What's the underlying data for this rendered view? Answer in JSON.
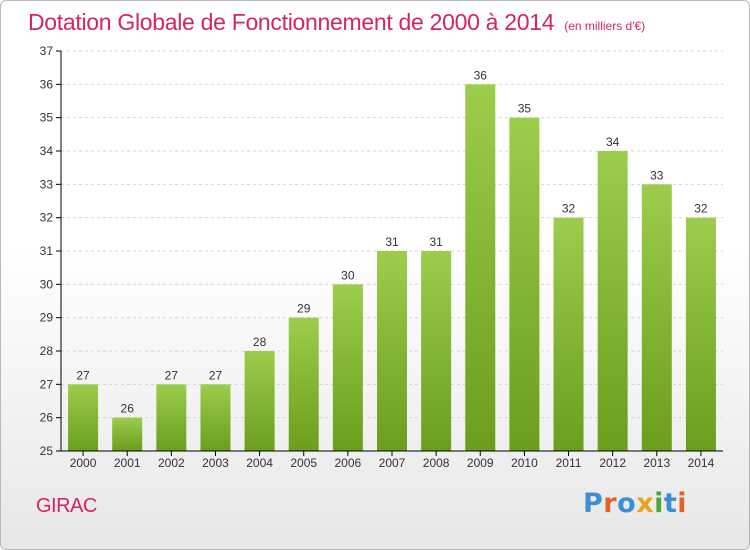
{
  "header": {
    "title": "Dotation Globale de Fonctionnement de 2000 à 2014",
    "subtitle": "(en milliers d'€)"
  },
  "footer": {
    "commune": "GIRAC",
    "logo_text": "Proxiti"
  },
  "colors": {
    "title": "#d2265c",
    "bar_light": "#9ccd4c",
    "bar_dark": "#6a9e1c",
    "grid": "#d4d4d4",
    "axis": "#000000"
  },
  "chart_data": {
    "type": "bar",
    "title": "Dotation Globale de Fonctionnement de 2000 à 2014",
    "subtitle": "(en milliers d'€)",
    "xlabel": "",
    "ylabel": "",
    "categories": [
      "2000",
      "2001",
      "2002",
      "2003",
      "2004",
      "2005",
      "2006",
      "2007",
      "2008",
      "2009",
      "2010",
      "2011",
      "2012",
      "2013",
      "2014"
    ],
    "values": [
      27,
      26,
      27,
      27,
      28,
      29,
      30,
      31,
      31,
      36,
      35,
      32,
      34,
      33,
      32
    ],
    "ylim": [
      25,
      37
    ],
    "yticks": [
      25,
      26,
      27,
      28,
      29,
      30,
      31,
      32,
      33,
      34,
      35,
      36,
      37
    ],
    "grid": "horizontal dashed",
    "data_labels": true,
    "legend": "none"
  }
}
